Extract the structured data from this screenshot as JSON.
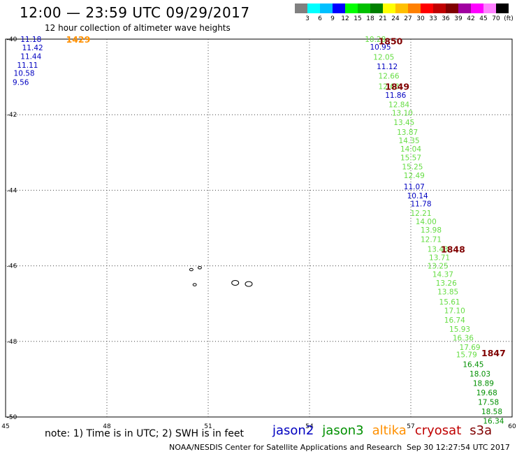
{
  "title": "12:00 — 23:59 UTC 09/29/2017",
  "subtitle": "12 hour collection of altimeter wave heights",
  "scale": {
    "unit_label": "(ft)",
    "bins": [
      {
        "label": "3",
        "color": "#808080"
      },
      {
        "label": "6",
        "color": "#00ffff"
      },
      {
        "label": "9",
        "color": "#00c0ff"
      },
      {
        "label": "12",
        "color": "#0000ff"
      },
      {
        "label": "15",
        "color": "#00ff00"
      },
      {
        "label": "18",
        "color": "#00c000"
      },
      {
        "label": "21",
        "color": "#008000"
      },
      {
        "label": "24",
        "color": "#ffff00"
      },
      {
        "label": "27",
        "color": "#ffc000"
      },
      {
        "label": "30",
        "color": "#ff8000"
      },
      {
        "label": "33",
        "color": "#ff0000"
      },
      {
        "label": "36",
        "color": "#c00000"
      },
      {
        "label": "39",
        "color": "#800000"
      },
      {
        "label": "42",
        "color": "#a000a0"
      },
      {
        "label": "45",
        "color": "#ff00ff"
      },
      {
        "label": "70",
        "color": "#ff80ff"
      },
      {
        "label": "",
        "color": "#000000"
      }
    ]
  },
  "map": {
    "lon_ticks": [
      "45",
      "48",
      "51",
      "54",
      "57",
      "60"
    ],
    "lat_ticks": [
      "-40",
      "-42",
      "-44",
      "-46",
      "-48",
      "-50"
    ],
    "lon_range": [
      45,
      60
    ],
    "lat_range": [
      -40,
      -50
    ],
    "grid": "dotted"
  },
  "satellites": [
    {
      "name": "jason2",
      "color": "#0000c0"
    },
    {
      "name": "jason3",
      "color": "#009000"
    },
    {
      "name": "altika",
      "color": "#ff9000"
    },
    {
      "name": "cryosat",
      "color": "#c00000"
    },
    {
      "name": "s3a",
      "color": "#800000"
    }
  ],
  "colors": {
    "jason2": "#0000c0",
    "jason3_light": "#66dd44",
    "jason3_dark": "#009000",
    "altika": "#ff9000",
    "pass_label": "#800000"
  },
  "pass_labels": [
    {
      "text": "1429",
      "lon": 47.15,
      "lat": -40.0,
      "sat": "altika"
    },
    {
      "text": "1850",
      "lon": 56.4,
      "lat": -40.05,
      "sat": "s3a"
    },
    {
      "text": "1849",
      "lon": 56.6,
      "lat": -41.25,
      "sat": "s3a"
    },
    {
      "text": "1848",
      "lon": 58.25,
      "lat": -45.55,
      "sat": "s3a"
    },
    {
      "text": "1847",
      "lon": 59.45,
      "lat": -48.3,
      "sat": "s3a"
    }
  ],
  "chart_data": {
    "type": "scatter",
    "xlabel": "",
    "ylabel": "",
    "xlim": [
      45,
      60
    ],
    "ylim": [
      -50,
      -40
    ],
    "series": [
      {
        "name": "jason2",
        "color": "#0000c0",
        "points": [
          {
            "lon": 45.75,
            "lat": -40.0,
            "value": "11.18"
          },
          {
            "lon": 45.8,
            "lat": -40.22,
            "value": "11.42"
          },
          {
            "lon": 45.75,
            "lat": -40.45,
            "value": "11.44"
          },
          {
            "lon": 45.65,
            "lat": -40.68,
            "value": "11.11"
          },
          {
            "lon": 45.55,
            "lat": -40.9,
            "value": "10.58"
          },
          {
            "lon": 45.45,
            "lat": -41.14,
            "value": "9.56"
          },
          {
            "lon": 56.1,
            "lat": -40.2,
            "value": "10.95"
          },
          {
            "lon": 56.3,
            "lat": -40.72,
            "value": "11.12"
          },
          {
            "lon": 56.55,
            "lat": -41.48,
            "value": "11.86"
          },
          {
            "lon": 57.1,
            "lat": -43.9,
            "value": "11.07"
          },
          {
            "lon": 57.2,
            "lat": -44.14,
            "value": "10.14"
          },
          {
            "lon": 57.3,
            "lat": -44.35,
            "value": "11.78"
          }
        ]
      },
      {
        "name": "jason3",
        "color": "#66dd44",
        "points": [
          {
            "lon": 55.95,
            "lat": -40.0,
            "value": "10.28"
          },
          {
            "lon": 56.2,
            "lat": -40.47,
            "value": "12.05"
          },
          {
            "lon": 56.35,
            "lat": -40.97,
            "value": "12.66"
          },
          {
            "lon": 56.35,
            "lat": -41.25,
            "value": "12.68"
          },
          {
            "lon": 56.65,
            "lat": -41.73,
            "value": "12.84"
          },
          {
            "lon": 56.75,
            "lat": -41.95,
            "value": "13.10"
          },
          {
            "lon": 56.8,
            "lat": -42.2,
            "value": "13.45"
          },
          {
            "lon": 56.9,
            "lat": -42.46,
            "value": "13.87"
          },
          {
            "lon": 56.95,
            "lat": -42.68,
            "value": "14.35"
          },
          {
            "lon": 57.0,
            "lat": -42.9,
            "value": "14.04"
          },
          {
            "lon": 57.0,
            "lat": -43.13,
            "value": "15.57"
          },
          {
            "lon": 57.05,
            "lat": -43.37,
            "value": "15.25"
          },
          {
            "lon": 57.1,
            "lat": -43.6,
            "value": "12.49"
          },
          {
            "lon": 57.3,
            "lat": -44.6,
            "value": "12.21"
          },
          {
            "lon": 57.45,
            "lat": -44.82,
            "value": "14.00"
          },
          {
            "lon": 57.6,
            "lat": -45.05,
            "value": "13.98"
          },
          {
            "lon": 57.6,
            "lat": -45.3,
            "value": "12.71"
          },
          {
            "lon": 57.8,
            "lat": -45.55,
            "value": "13.43"
          },
          {
            "lon": 57.85,
            "lat": -45.78,
            "value": "13.71"
          },
          {
            "lon": 57.8,
            "lat": -46.0,
            "value": "13.25"
          },
          {
            "lon": 57.95,
            "lat": -46.22,
            "value": "14.37"
          },
          {
            "lon": 58.05,
            "lat": -46.45,
            "value": "13.26"
          },
          {
            "lon": 58.1,
            "lat": -46.68,
            "value": "13.85"
          },
          {
            "lon": 58.15,
            "lat": -46.95,
            "value": "15.61"
          },
          {
            "lon": 58.3,
            "lat": -47.18,
            "value": "17.10"
          },
          {
            "lon": 58.3,
            "lat": -47.43,
            "value": "16.74"
          },
          {
            "lon": 58.45,
            "lat": -47.67,
            "value": "15.93"
          },
          {
            "lon": 58.55,
            "lat": -47.9,
            "value": "16.36"
          },
          {
            "lon": 58.75,
            "lat": -48.15,
            "value": "17.69"
          },
          {
            "lon": 58.65,
            "lat": -48.35,
            "value": "15.79"
          }
        ]
      },
      {
        "name": "jason3",
        "color": "#009000",
        "points": [
          {
            "lon": 58.85,
            "lat": -48.6,
            "value": "16.45"
          },
          {
            "lon": 59.05,
            "lat": -48.85,
            "value": "18.03"
          },
          {
            "lon": 59.15,
            "lat": -49.1,
            "value": "18.89"
          },
          {
            "lon": 59.25,
            "lat": -49.35,
            "value": "19.68"
          },
          {
            "lon": 59.3,
            "lat": -49.6,
            "value": "17.58"
          },
          {
            "lon": 59.4,
            "lat": -49.85,
            "value": "18.58"
          },
          {
            "lon": 59.45,
            "lat": -50.1,
            "value": "16.34"
          }
        ]
      }
    ]
  },
  "land": [
    {
      "name": "island-outline",
      "lon": 50.5,
      "lat": -46.1
    },
    {
      "name": "island-outline",
      "lon": 50.75,
      "lat": -46.05
    },
    {
      "name": "island-outline",
      "lon": 50.6,
      "lat": -46.5
    },
    {
      "name": "island-outline",
      "lon": 51.8,
      "lat": -46.45
    },
    {
      "name": "island-outline",
      "lon": 52.2,
      "lat": -46.48
    }
  ],
  "note": "note: 1) Time is in UTC; 2) SWH is in feet",
  "credit": "NOAA/NESDIS Center for Satellite Applications and Research",
  "timestamp": "Sep 30 12:27:54 UTC 2017"
}
